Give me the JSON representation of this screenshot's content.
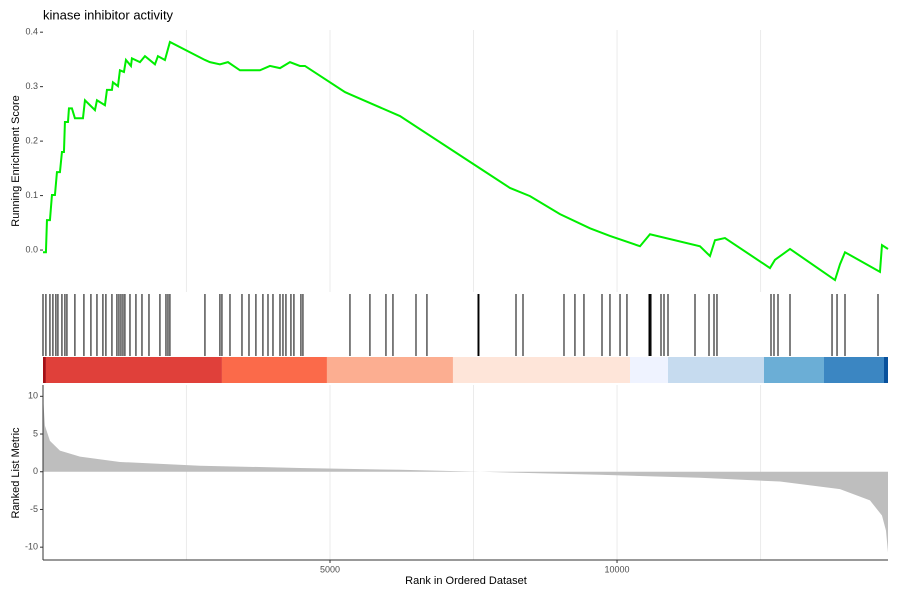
{
  "chart_data": [
    {
      "type": "line",
      "title": "kinase inhibitor activity",
      "ylabel": "Running Enrichment Score",
      "color": "#00ee00",
      "x": [
        1,
        52,
        70,
        122,
        157,
        209,
        244,
        296,
        331,
        366,
        383,
        436,
        453,
        505,
        557,
        697,
        732,
        906,
        941,
        1080,
        1115,
        1202,
        1219,
        1307,
        1341,
        1411,
        1446,
        1533,
        1550,
        1690,
        1777,
        1951,
        2003,
        2125,
        2212,
        2822,
        2909,
        3083,
        3223,
        3432,
        3606,
        3780,
        3954,
        4129,
        4303,
        4477,
        4564,
        5261,
        5348,
        6219,
        7613,
        8135,
        8484,
        9006,
        9529,
        9877,
        10400,
        10574,
        11445,
        11619,
        11706,
        11880,
        12664,
        12751,
        13013,
        13797,
        13884,
        13971,
        14580,
        14615,
        14720
      ],
      "values": [
        -0.004,
        -0.004,
        0.055,
        0.055,
        0.101,
        0.101,
        0.143,
        0.143,
        0.18,
        0.18,
        0.235,
        0.235,
        0.26,
        0.26,
        0.242,
        0.242,
        0.275,
        0.257,
        0.275,
        0.266,
        0.294,
        0.294,
        0.308,
        0.301,
        0.33,
        0.327,
        0.349,
        0.338,
        0.352,
        0.345,
        0.356,
        0.341,
        0.356,
        0.349,
        0.382,
        0.349,
        0.345,
        0.341,
        0.345,
        0.33,
        0.33,
        0.33,
        0.338,
        0.334,
        0.345,
        0.338,
        0.338,
        0.29,
        0.286,
        0.246,
        0.15,
        0.114,
        0.099,
        0.066,
        0.04,
        0.026,
        0.007,
        0.029,
        0.007,
        -0.011,
        0.018,
        0.022,
        -0.033,
        -0.018,
        0.002,
        -0.055,
        -0.026,
        -0.004,
        -0.04,
        0.009,
        0.002
      ],
      "xlim": [
        1,
        14720
      ],
      "ylim": [
        -0.077,
        0.404
      ],
      "yticks": [
        {
          "value": 0,
          "label": "0.0"
        },
        0.1,
        0.2,
        0.3,
        0.4
      ],
      "xgrid": [
        2500,
        5000,
        7500,
        10000,
        12500
      ]
    },
    {
      "type": "rug",
      "color": "#000000",
      "xlim": [
        1,
        14720
      ],
      "x": [
        1,
        52,
        122,
        174,
        226,
        261,
        331,
        383,
        418,
        557,
        714,
        836,
        941,
        1045,
        1097,
        1202,
        1289,
        1324,
        1359,
        1394,
        1428,
        1516,
        1620,
        1725,
        1847,
        2038,
        2143,
        2178,
        2212,
        2822,
        3083,
        3118,
        3258,
        3467,
        3589,
        3710,
        3832,
        3920,
        4007,
        4129,
        4181,
        4233,
        4320,
        4372,
        4494,
        4529,
        5348,
        5696,
        5975,
        6097,
        6498,
        6689,
        7578,
        7595,
        8240,
        8362,
        9076,
        9267,
        9424,
        9738,
        9877,
        10052,
        10173,
        10557,
        10574,
        10592,
        10766,
        10818,
        10888,
        11358,
        11602,
        11689,
        11741,
        12682,
        12734,
        12804,
        13013,
        13745,
        13832,
        13971,
        14546
      ],
      "band_edges": [
        1,
        52,
        3118,
        4947,
        7142,
        10226,
        10888,
        12560,
        13605,
        14650,
        14720
      ],
      "band_colors": [
        "#a50f15",
        "#e0403a",
        "#fb6a4a",
        "#fcae91",
        "#fee5d9",
        "#eff3ff",
        "#c6dbef",
        "#6baed6",
        "#3b86c2",
        "#08519c"
      ]
    },
    {
      "type": "area",
      "ylabel": "Ranked List Metric",
      "xlabel": "Rank in Ordered Dataset",
      "color": "#bebebe",
      "x": [
        1,
        35,
        122,
        296,
        645,
        1341,
        2735,
        4477,
        6219,
        7613,
        9703,
        11445,
        12838,
        13884,
        14406,
        14615,
        14685,
        14720
      ],
      "values": [
        10,
        6.1,
        4.1,
        2.8,
        2.0,
        1.3,
        0.8,
        0.5,
        0.26,
        0,
        -0.4,
        -0.8,
        -1.3,
        -2.3,
        -3.8,
        -5.8,
        -7.8,
        -10.7
      ],
      "xlim": [
        1,
        14720
      ],
      "ylim": [
        -11.7,
        11.5
      ],
      "yticks": [
        10,
        5,
        0,
        -5,
        -10
      ],
      "xticks": [
        5000,
        10000
      ],
      "xgrid": [
        2500,
        5000,
        7500,
        10000,
        12500
      ]
    }
  ]
}
